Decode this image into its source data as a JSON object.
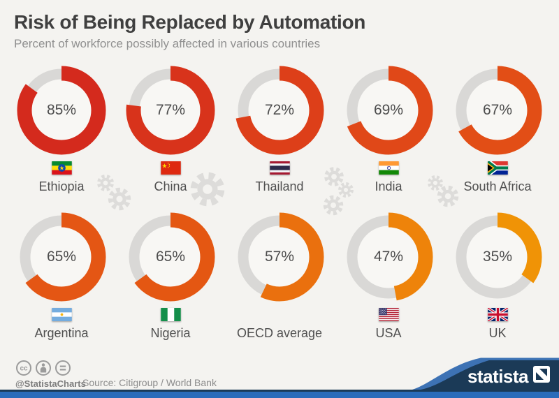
{
  "chart_data": {
    "type": "donut",
    "title": "Risk of Being Replaced by Automation",
    "subtitle": "Percent of workforce possibly affected in various countries",
    "unit": "percent",
    "value_range": [
      0,
      100
    ],
    "arc_start": "12-oclock",
    "arc_direction": "clockwise",
    "ring_background_color": "#d9d8d6",
    "layout": {
      "columns": 5,
      "rows": 2
    },
    "items": [
      {
        "label": "Ethiopia",
        "value": 85,
        "value_label": "85%",
        "flag": "ethiopia",
        "color": "#d42a1d"
      },
      {
        "label": "China",
        "value": 77,
        "value_label": "77%",
        "flag": "china",
        "color": "#d8331b"
      },
      {
        "label": "Thailand",
        "value": 72,
        "value_label": "72%",
        "flag": "thailand",
        "color": "#dd3f19"
      },
      {
        "label": "India",
        "value": 69,
        "value_label": "69%",
        "flag": "india",
        "color": "#e04818"
      },
      {
        "label": "South Africa",
        "value": 67,
        "value_label": "67%",
        "flag": "south-africa",
        "color": "#e24e16"
      },
      {
        "label": "Argentina",
        "value": 65,
        "value_label": "65%",
        "flag": "argentina",
        "color": "#e45614"
      },
      {
        "label": "Nigeria",
        "value": 65,
        "value_label": "65%",
        "flag": "nigeria",
        "color": "#e45712"
      },
      {
        "label": "OECD average",
        "value": 57,
        "value_label": "57%",
        "flag": null,
        "color": "#ea700e"
      },
      {
        "label": "USA",
        "value": 47,
        "value_label": "47%",
        "flag": "usa",
        "color": "#ee830a"
      },
      {
        "label": "UK",
        "value": 35,
        "value_label": "35%",
        "flag": "uk",
        "color": "#f09306"
      }
    ]
  },
  "footer": {
    "license_icons": [
      "creative-commons-icon",
      "attribution-icon",
      "equals-icon"
    ],
    "handle": "@StatistaCharts",
    "source": "Source: Citigroup / World Bank",
    "brand": "statista"
  },
  "colors": {
    "background": "#f4f3f0",
    "title_text": "#3f3f3f",
    "subtitle_text": "#909090",
    "percent_text": "#4d4d4d",
    "label_text": "#4f4f4f",
    "gear": "#dddcda",
    "footer_text": "#8c8c8c",
    "brand_navy": "#1b3a57",
    "brand_stripe": "#3d72b4",
    "bottom_bar": "#2b6cba"
  }
}
